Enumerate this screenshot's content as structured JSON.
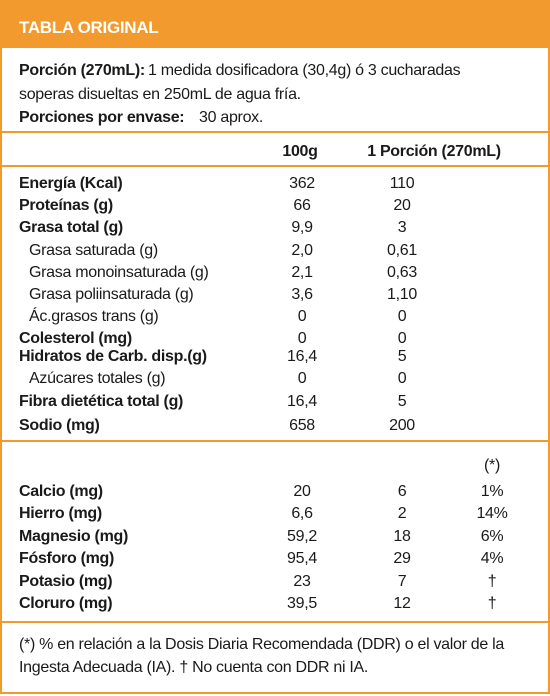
{
  "header": {
    "title": "TABLA ORIGINAL"
  },
  "portion": {
    "label": "Porción (270mL):",
    "text_lines": [
      "1 medida dosificadora (30,4g) ó 3 cucharadas",
      "soperas disueltas en 250mL de agua fría."
    ]
  },
  "servings": {
    "label": "Porciones por envase:",
    "value": "30 aprox."
  },
  "columns": [
    "100g",
    "1 Porción (270mL)"
  ],
  "rows": [
    [
      "Energía (Kcal)",
      "362",
      "110"
    ],
    [
      "Proteínas (g)",
      "66",
      "20"
    ],
    [
      "Grasa total (g)",
      "9,9",
      "3"
    ],
    [
      "Grasa saturada (g)",
      "2,0",
      "0,61"
    ],
    [
      "Grasa monoinsaturada (g)",
      "2,1",
      "0,63"
    ],
    [
      "Grasa poliinsaturada (g)",
      "3,6",
      "1,10"
    ],
    [
      "Ác.grasos trans (g)",
      "0",
      "0"
    ],
    [
      "Colesterol (mg)",
      "0",
      "0"
    ],
    [
      "Hidratos de Carb. disp.(g)",
      "16,4",
      "5"
    ],
    [
      "Azúcares totales (g)",
      "0",
      "0"
    ],
    [
      "Fibra dietética total (g)",
      "16,4",
      "5"
    ],
    [
      "Sodio (mg)",
      "658",
      "200"
    ]
  ],
  "minerals_header": "(*)",
  "minerals": [
    [
      "Calcio (mg)",
      "20",
      "6",
      "1%"
    ],
    [
      "Hierro (mg)",
      "6,6",
      "2",
      "14%"
    ],
    [
      "Magnesio (mg)",
      "59,2",
      "18",
      "6%"
    ],
    [
      "Fósforo (mg)",
      "95,4",
      "29",
      "4%"
    ],
    [
      "Potasio (mg)",
      "23",
      "7",
      "†"
    ],
    [
      "Cloruro (mg)",
      "39,5",
      "12",
      "†"
    ]
  ],
  "footnote": "(*) % en relación a la Dosis Diaria Recomendada (DDR) o el valor de la Ingesta Adecuada (IA). † No cuenta con DDR ni IA."
}
